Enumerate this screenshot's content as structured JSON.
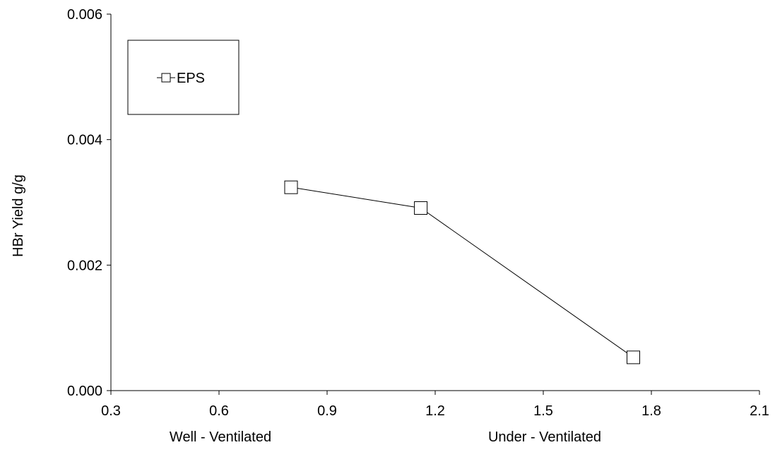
{
  "chart_data": {
    "type": "line",
    "title": "",
    "xlabel": "",
    "ylabel": "HBr  Yield g/g",
    "xlim": [
      0.3,
      2.1
    ],
    "ylim": [
      0.0,
      0.006
    ],
    "xticks": [
      "0.3",
      "0.6",
      "0.9",
      "1.2",
      "1.5",
      "1.8",
      "2.1"
    ],
    "yticks": [
      "0.000",
      "0.002",
      "0.004",
      "0.006"
    ],
    "x_annotations": [
      {
        "text": "Well - Ventilated",
        "x": 0.6
      },
      {
        "text": "Under - Ventilated",
        "x": 1.5
      }
    ],
    "grid": false,
    "legend": {
      "position": "top-left",
      "entries": [
        "EPS"
      ]
    },
    "series": [
      {
        "name": "EPS",
        "marker": "open-square",
        "color": "#000000",
        "x": [
          0.8,
          1.16,
          1.75
        ],
        "y": [
          0.00324,
          0.00291,
          0.00053
        ]
      }
    ]
  }
}
